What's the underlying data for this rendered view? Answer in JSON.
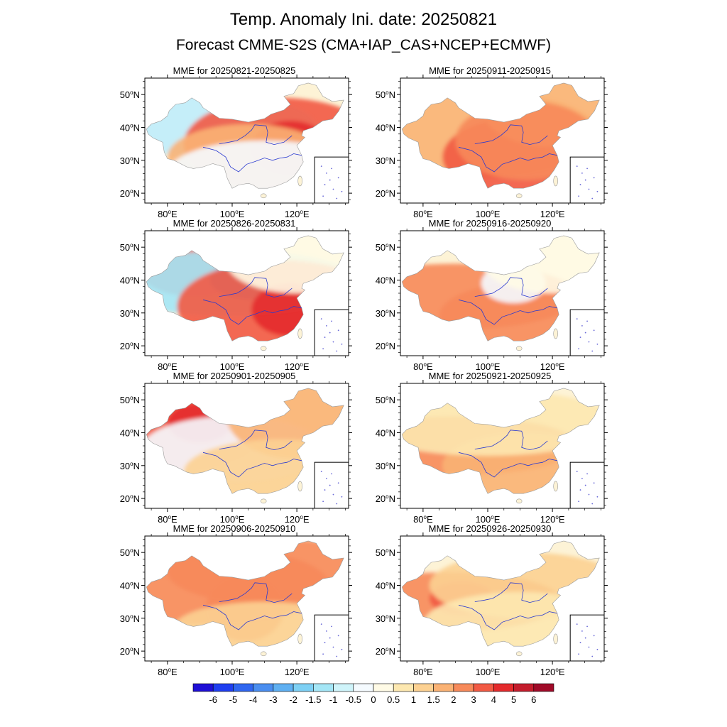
{
  "title": "Temp. Anomaly Ini. date: 20250821",
  "subtitle": "Forecast CMME-S2S (CMA+IAP_CAS+NCEP+ECMWF)",
  "lat_labels": [
    "50",
    "40",
    "30",
    "20"
  ],
  "lat_suffix": "N",
  "lon_labels": [
    "80",
    "100",
    "120"
  ],
  "lon_suffix": "E",
  "degree_symbol": "o",
  "panels": [
    {
      "title": "MME for 20250821-20250825",
      "blobs": [
        {
          "lon": 83,
          "lat": 41,
          "level": -3,
          "rx": 22,
          "ry": 9
        },
        {
          "lon": 96,
          "lat": 40,
          "level": -1,
          "rx": 30,
          "ry": 10
        },
        {
          "lon": 115,
          "lat": 35,
          "level": 3,
          "rx": 30,
          "ry": 14
        },
        {
          "lon": 118,
          "lat": 34,
          "level": 4,
          "rx": 12,
          "ry": 8
        },
        {
          "lon": 105,
          "lat": 31,
          "level": 1.5,
          "rx": 25,
          "ry": 10
        },
        {
          "lon": 110,
          "lat": 26,
          "level": -0.5,
          "rx": 30,
          "ry": 10
        }
      ]
    },
    {
      "title": "MME for 20250826-20250831",
      "blobs": [
        {
          "lon": 88,
          "lat": 45,
          "level": 3,
          "rx": 18,
          "ry": 10
        },
        {
          "lon": 100,
          "lat": 39,
          "level": -1.5,
          "rx": 40,
          "ry": 10
        },
        {
          "lon": 108,
          "lat": 40,
          "level": -3,
          "rx": 15,
          "ry": 6
        },
        {
          "lon": 115,
          "lat": 32,
          "level": 3,
          "rx": 32,
          "ry": 14
        },
        {
          "lon": 118,
          "lat": 31,
          "level": 4,
          "rx": 12,
          "ry": 8
        },
        {
          "lon": 120,
          "lat": 46,
          "level": 0,
          "rx": 22,
          "ry": 10
        }
      ]
    },
    {
      "title": "MME for 20250901-20250905",
      "blobs": [
        {
          "lon": 83,
          "lat": 42,
          "level": 3,
          "rx": 28,
          "ry": 14
        },
        {
          "lon": 90,
          "lat": 43,
          "level": 4,
          "rx": 10,
          "ry": 6
        },
        {
          "lon": 100,
          "lat": 35,
          "level": -0.5,
          "rx": 28,
          "ry": 10
        },
        {
          "lon": 120,
          "lat": 46,
          "level": 1.5,
          "rx": 22,
          "ry": 14
        },
        {
          "lon": 115,
          "lat": 28,
          "level": 1,
          "rx": 30,
          "ry": 10
        }
      ]
    },
    {
      "title": "MME for 20250906-20250910",
      "blobs": [
        {
          "lon": 90,
          "lat": 40,
          "level": 2,
          "rx": 40,
          "ry": 12
        },
        {
          "lon": 115,
          "lat": 44,
          "level": 2,
          "rx": 35,
          "ry": 10
        },
        {
          "lon": 104,
          "lat": 33,
          "level": 2,
          "rx": 12,
          "ry": 10
        },
        {
          "lon": 110,
          "lat": 27,
          "level": 1,
          "rx": 28,
          "ry": 8
        }
      ]
    },
    {
      "title": "MME for 20250911-20250915",
      "blobs": [
        {
          "lon": 90,
          "lat": 38,
          "level": 1.5,
          "rx": 45,
          "ry": 14
        },
        {
          "lon": 110,
          "lat": 31,
          "level": 3,
          "rx": 24,
          "ry": 12
        },
        {
          "lon": 120,
          "lat": 46,
          "level": 1.5,
          "rx": 22,
          "ry": 12
        },
        {
          "lon": 112,
          "lat": 36,
          "level": 2,
          "rx": 22,
          "ry": 12
        }
      ]
    },
    {
      "title": "MME for 20250916-20250920",
      "blobs": [
        {
          "lon": 90,
          "lat": 35,
          "level": 2,
          "rx": 38,
          "ry": 10
        },
        {
          "lon": 110,
          "lat": 29,
          "level": 2,
          "rx": 25,
          "ry": 10
        },
        {
          "lon": 108,
          "lat": 39,
          "level": -0.5,
          "rx": 10,
          "ry": 6
        },
        {
          "lon": 120,
          "lat": 46,
          "level": 0,
          "rx": 22,
          "ry": 10
        }
      ]
    },
    {
      "title": "MME for 20250921-20250925",
      "blobs": [
        {
          "lon": 90,
          "lat": 36,
          "level": 2,
          "rx": 38,
          "ry": 9
        },
        {
          "lon": 112,
          "lat": 30,
          "level": 1.5,
          "rx": 26,
          "ry": 10
        },
        {
          "lon": 100,
          "lat": 43,
          "level": 0.5,
          "rx": 40,
          "ry": 10
        }
      ]
    },
    {
      "title": "MME for 20250926-20250930",
      "blobs": [
        {
          "lon": 88,
          "lat": 35,
          "level": 2,
          "rx": 35,
          "ry": 9
        },
        {
          "lon": 92,
          "lat": 36,
          "level": 3,
          "rx": 10,
          "ry": 5
        },
        {
          "lon": 112,
          "lat": 40,
          "level": 1,
          "rx": 30,
          "ry": 10
        },
        {
          "lon": 110,
          "lat": 28,
          "level": 0.5,
          "rx": 30,
          "ry": 10
        }
      ]
    }
  ],
  "colorbar": {
    "labels": [
      "-6",
      "-5",
      "-4",
      "-3",
      "-2",
      "-1.5",
      "-1",
      "-0.5",
      "0",
      "0.5",
      "1",
      "1.5",
      "2",
      "3",
      "4",
      "5",
      "6"
    ],
    "colors": [
      "#1e0fd6",
      "#1e3ef0",
      "#2f66f0",
      "#4a8ef0",
      "#5fb0f2",
      "#7dd0f4",
      "#a4e6f6",
      "#cff4fa",
      "#f5fbff",
      "#fffbe6",
      "#fde8b0",
      "#fcd192",
      "#fab274",
      "#f78a5a",
      "#f25a44",
      "#e42a2c",
      "#c41c2c",
      "#a00a28"
    ]
  }
}
